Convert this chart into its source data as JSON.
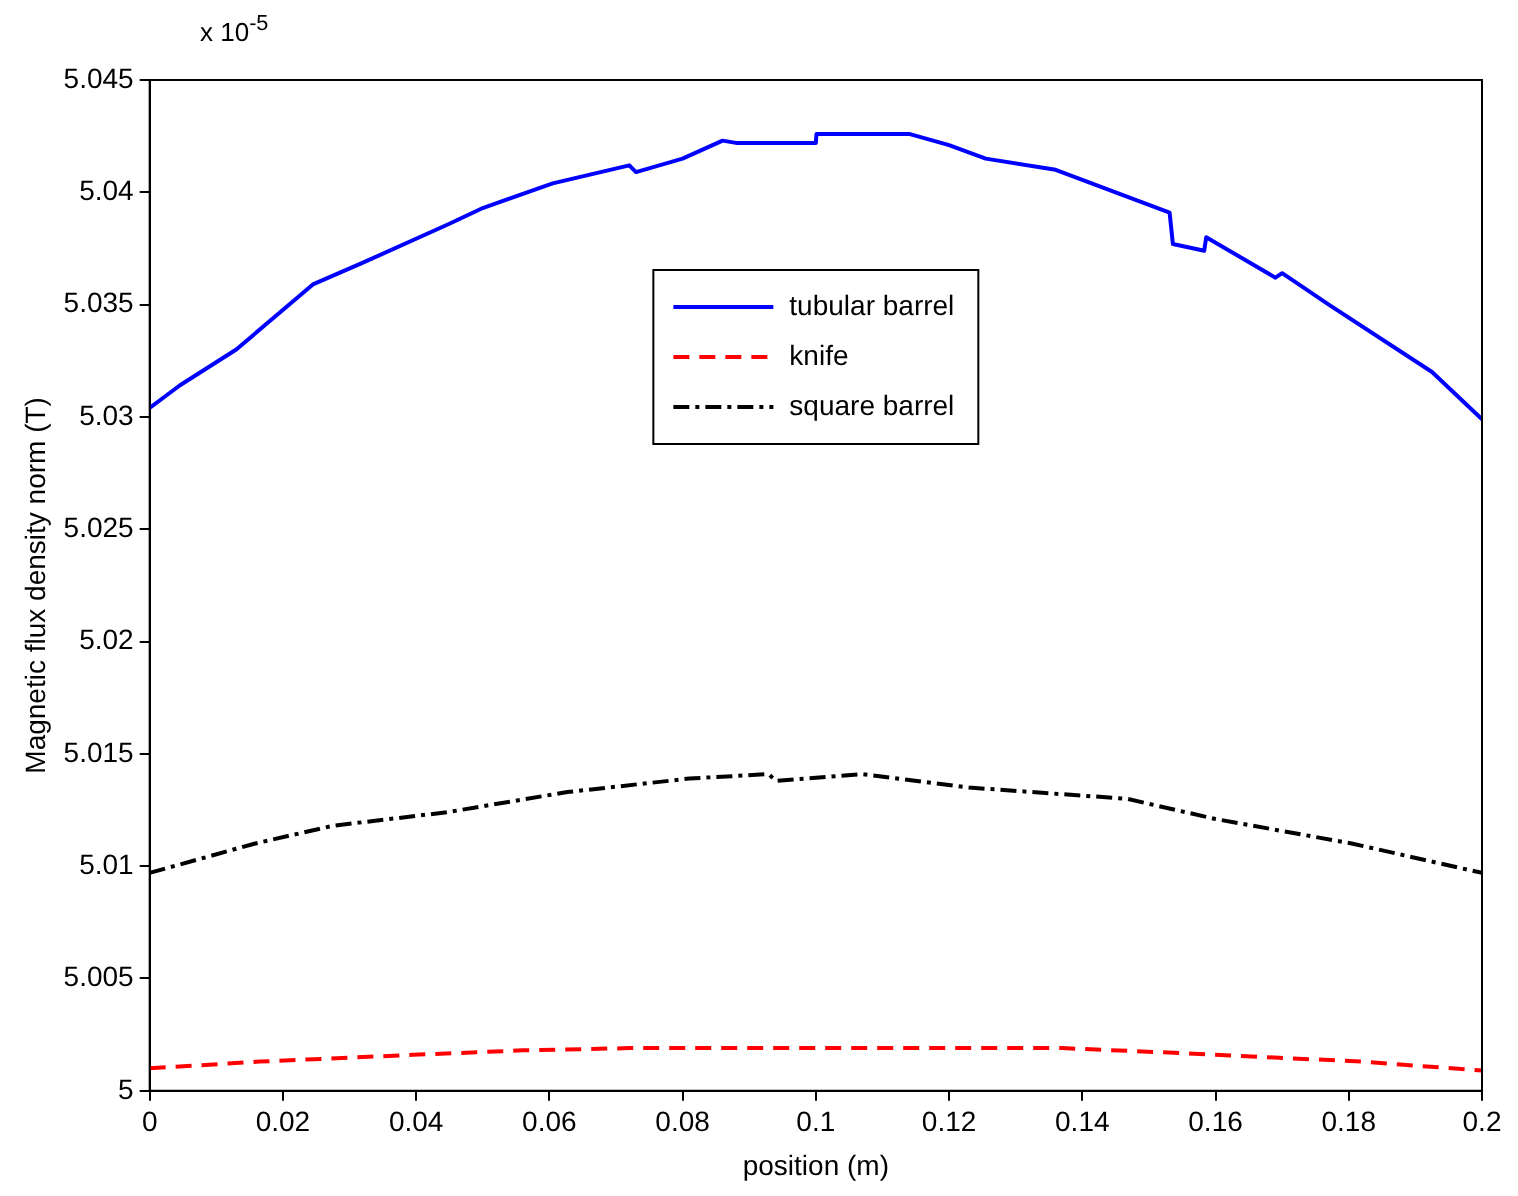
{
  "chart_data": {
    "type": "line",
    "xlabel": "position (m)",
    "ylabel": "Magnetic flux density norm (T)",
    "annotations": [
      "x 10$^{-5}$"
    ],
    "xlim": [
      0,
      0.2
    ],
    "xticks": [
      0,
      0.02,
      0.04,
      0.06,
      0.08,
      0.1,
      0.12,
      0.14,
      0.16,
      0.18,
      0.2
    ],
    "ylim": [
      5,
      5.045
    ],
    "yticks": [
      5,
      5.005,
      5.01,
      5.015,
      5.02,
      5.025,
      5.03,
      5.035,
      5.04,
      5.045
    ],
    "grid": false,
    "legend": "top",
    "marker": "none",
    "series": [
      {
        "name": "tubular barrel",
        "color": "#0000ff",
        "line_style": "solid",
        "x": [
          0,
          0.0045,
          0.013,
          0.0245,
          0.0315,
          0.045,
          0.05,
          0.0605,
          0.072,
          0.073,
          0.08,
          0.086,
          0.088,
          0.1,
          0.1001,
          0.114,
          0.12,
          0.1255,
          0.136,
          0.1531,
          0.1536,
          0.1583,
          0.1586,
          0.169,
          0.17,
          0.177,
          0.1925,
          0.2
        ],
        "values": [
          5.0304,
          5.0314,
          5.033,
          5.0359,
          5.0368,
          5.0386,
          5.0393,
          5.0404,
          5.0412,
          5.0409,
          5.0415,
          5.0423,
          5.0422,
          5.0422,
          5.0426,
          5.0426,
          5.0421,
          5.0415,
          5.041,
          5.0391,
          5.0377,
          5.0374,
          5.038,
          5.0362,
          5.0364,
          5.035,
          5.032,
          5.0299
        ]
      },
      {
        "name": "knife",
        "color": "#ff0000",
        "line_style": "dashed",
        "x": [
          0,
          0.0165,
          0.0395,
          0.056,
          0.072,
          0.137,
          0.153,
          0.182,
          0.2
        ],
        "values": [
          5.001,
          5.0013,
          5.0016,
          5.0018,
          5.0019,
          5.0019,
          5.0017,
          5.0013,
          5.0009
        ]
      },
      {
        "name": "square barrel",
        "color": "#000000",
        "line_style": "dashdot",
        "x": [
          0,
          0.0157,
          0.0275,
          0.0446,
          0.0627,
          0.081,
          0.0929,
          0.094,
          0.107,
          0.123,
          0.1467,
          0.16,
          0.1806,
          0.2
        ],
        "values": [
          5.0097,
          5.011,
          5.0118,
          5.0124,
          5.0133,
          5.0139,
          5.0141,
          5.0138,
          5.0141,
          5.0135,
          5.013,
          5.0121,
          5.011,
          5.0097
        ]
      }
    ]
  }
}
